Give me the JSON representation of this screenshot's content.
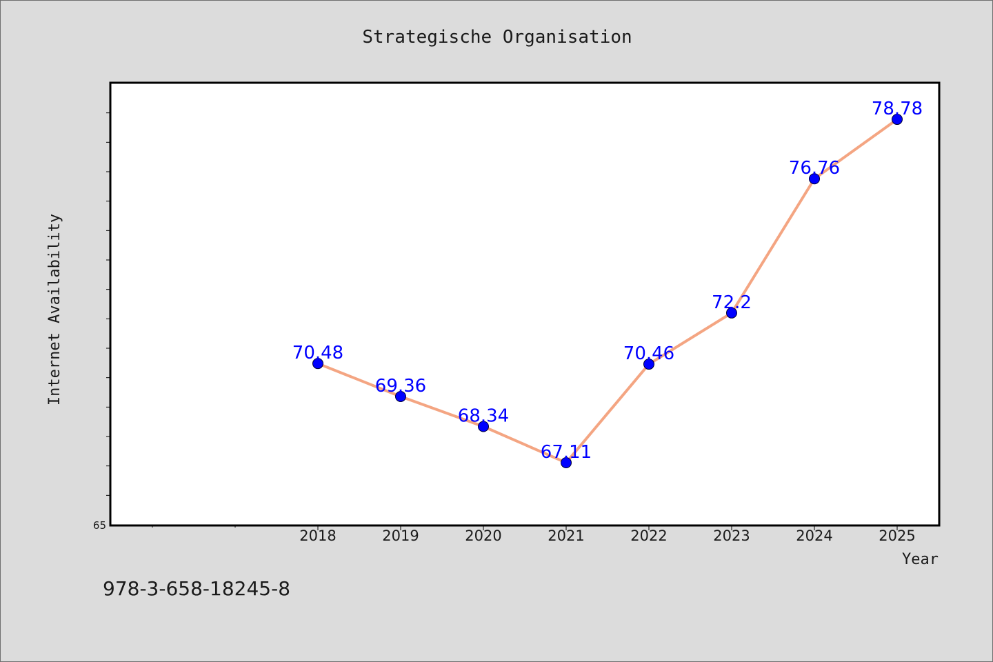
{
  "chart_data": {
    "type": "line",
    "title": "Strategische Organisation",
    "xlabel": "Year",
    "ylabel": "Internet Availability",
    "categories": [
      "2018",
      "2019",
      "2020",
      "2021",
      "2022",
      "2023",
      "2024",
      "2025"
    ],
    "series": [
      {
        "values": [
          70.48,
          69.36,
          68.34,
          67.11,
          70.46,
          72.2,
          76.76,
          78.78
        ],
        "labels": [
          "70.48",
          "69.36",
          "68.34",
          "67.11",
          "70.46",
          "72.2",
          "76.76",
          "78.78"
        ]
      }
    ],
    "ylim": [
      65,
      80
    ],
    "y_tick_labels_shown": [
      "65"
    ],
    "grid": false,
    "legend": "none",
    "colors": {
      "background": "#dcdcdc",
      "plot_area": "#ffffff",
      "line": "#f4a582",
      "marker": "#0000ff",
      "data_label": "#0000ff"
    }
  },
  "footer": {
    "text": "978-3-658-18245-8"
  }
}
